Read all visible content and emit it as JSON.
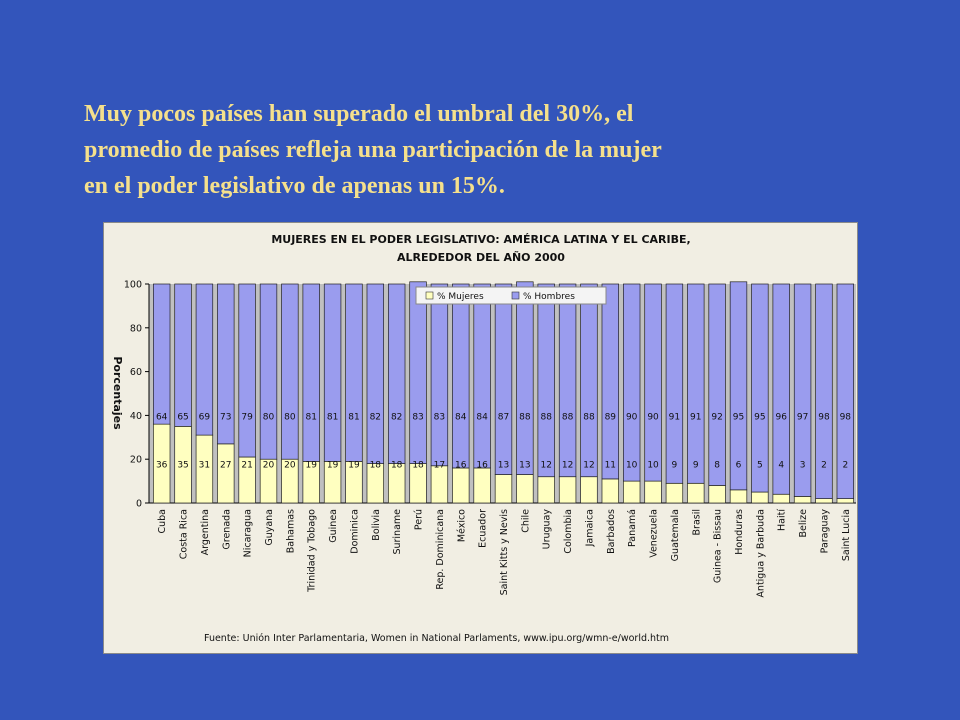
{
  "slide": {
    "heading_lines": [
      "Muy pocos países han superado el umbral del 30%,  el",
      "promedio de países refleja una participación de la mujer",
      "en el poder legislativo de apenas un 15%."
    ]
  },
  "colors": {
    "background": "#3355bb",
    "heading": "#f5e08c",
    "mujeres": "#ffffc0",
    "hombres": "#9a9cee",
    "plot_bg": "#c0c0c0"
  },
  "chart_data": {
    "type": "bar",
    "stacked": true,
    "title_lines": [
      "MUJERES EN EL PODER LEGISLATIVO: AMÉRICA LATINA Y EL CARIBE,",
      "ALREDEDOR DEL AÑO 2000"
    ],
    "ylabel": "Porcentajes",
    "ylim": [
      0,
      100
    ],
    "yticks": [
      0,
      20,
      40,
      60,
      80,
      100
    ],
    "grid": false,
    "legend_position": "top-right",
    "source": "Fuente: Unión Inter Parlamentaria, Women in National Parlaments, www.ipu.org/wmn-e/world.htm",
    "categories": [
      "Cuba",
      "Costa Rica",
      "Argentina",
      "Grenada",
      "Nicaragua",
      "Guyana",
      "Bahamas",
      "Trinidad y Tobago",
      "Guinea",
      "Dominica",
      "Bolivia",
      "Suriname",
      "Perú",
      "Rep. Dominicana",
      "México",
      "Ecuador",
      "Saint Kitts y Nevis",
      "Chile",
      "Uruguay",
      "Colombia",
      "Jamaica",
      "Barbados",
      "Panamá",
      "Venezuela",
      "Guatemala",
      "Brasil",
      "Guinea - Bissau",
      "Honduras",
      "Antigua y Barbuda",
      "Haití",
      "Belize",
      "Paraguay",
      "Saint Lucia"
    ],
    "series": [
      {
        "name": "% Mujeres",
        "values": [
          36,
          35,
          31,
          27,
          21,
          20,
          20,
          19,
          19,
          19,
          18,
          18,
          18,
          17,
          16,
          16,
          13,
          13,
          12,
          12,
          12,
          11,
          10,
          10,
          9,
          9,
          8,
          6,
          5,
          4,
          3,
          2,
          2
        ]
      },
      {
        "name": "% Hombres",
        "values": [
          64,
          65,
          69,
          73,
          79,
          80,
          80,
          81,
          81,
          81,
          82,
          82,
          83,
          83,
          84,
          84,
          87,
          88,
          88,
          88,
          88,
          89,
          90,
          90,
          91,
          91,
          92,
          95,
          95,
          96,
          97,
          98,
          98
        ]
      }
    ]
  }
}
